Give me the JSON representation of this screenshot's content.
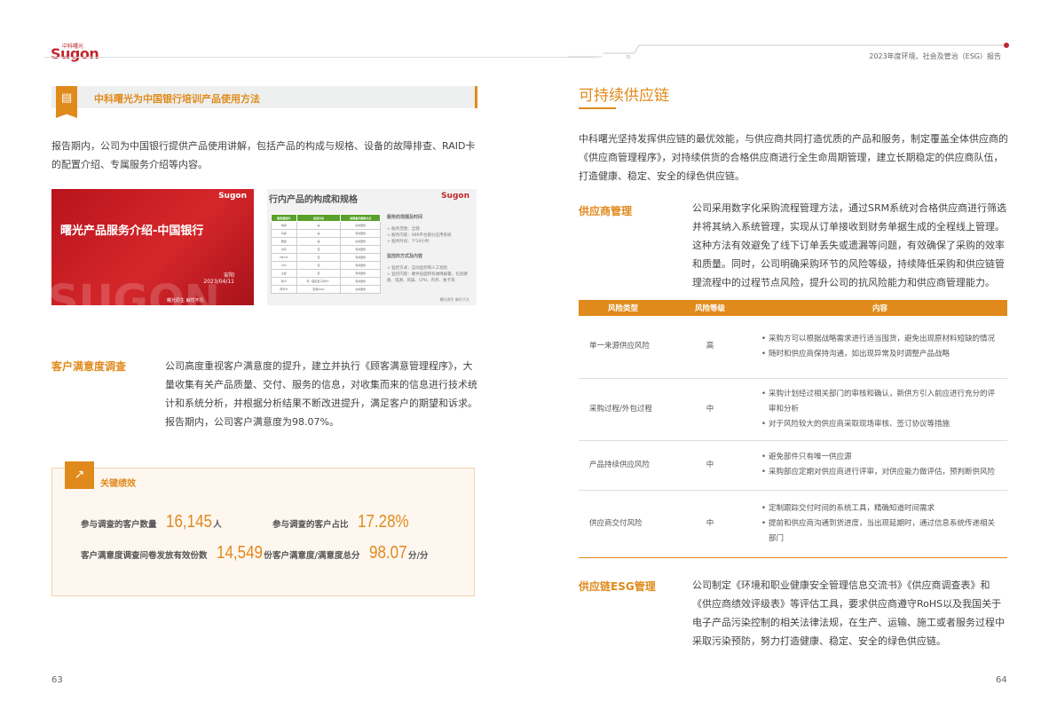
{
  "header": {
    "logo_cn": "中科曙光",
    "logo": "Sugon",
    "report_title": "2023年度环境、社会及管治（ESG）报告"
  },
  "left": {
    "banner_title": "中科曙光为中国银行培训产品使用方法",
    "intro": "报告期内，公司为中国银行提供产品使用讲解，包括产品的构成与规格、设备的故障排查、RAID卡的配置介绍、专属服务介绍等内容。",
    "slide1": {
      "logo": "Sugon",
      "title": "曙光产品服务介绍-中国银行",
      "presenter": "安阳",
      "date": "2023/04/11",
      "footer": "曙光原生 解忧不凡"
    },
    "slide2": {
      "logo": "Sugon",
      "title": "行内产品的构成和规格",
      "table_headers": [
        "服务器组件",
        "是否冗余",
        "故障备件替换方式"
      ],
      "table_rows": [
        [
          "电源",
          "是",
          "在线更换"
        ],
        [
          "风扇",
          "是",
          "离线更换"
        ],
        [
          "硬盘",
          "是",
          "在线更换"
        ],
        [
          "内存",
          "否",
          "离线更换"
        ],
        [
          "HBA卡",
          "否",
          "离线更换"
        ],
        [
          "CPU",
          "否",
          "离线更换"
        ],
        [
          "主板",
          "否",
          "离线更换"
        ],
        [
          "网卡",
          "有（需配置子网卡）",
          "离线更换"
        ],
        [
          "阵列卡",
          "配置RAID",
          "在线更换"
        ]
      ],
      "scope_title": "服务的范围及时间",
      "scope_items": [
        "服务范围：全辖",
        "服务内容：X86平台部分应用系统",
        "服务时间：7*24小时"
      ],
      "monitor_title": "监控的方式及内容",
      "monitor_items": [
        "监控方式：自动监控和人工巡检",
        "监控内容：硬件层面所有故障报警，包括硬盘、电源、风扇、CPU、内存、板卡等"
      ],
      "footer": "曙光原生 解忧不凡"
    },
    "satisfaction": {
      "heading": "客户满意度调查",
      "text": "公司高度重视客户满意度的提升，建立并执行《顾客满意管理程序》，大量收集有关产品质量、交付、服务的信息，对收集而来的信息进行技术统计和系统分析，并根据分析结果不断改进提升，满足客户的期望和诉求。报告期内，公司客户满意度为98.07%。"
    },
    "kpi": {
      "title": "关键绩效",
      "items": [
        {
          "label": "参与调查的客户数量",
          "value": "16,145",
          "unit": "人"
        },
        {
          "label": "参与调查的客户占比",
          "value": "17.28%",
          "unit": ""
        },
        {
          "label": "客户满意度调查问卷发放有效份数",
          "value": "14,549",
          "unit": "份"
        },
        {
          "label": "客户满意度/满意度总分",
          "value": "98.07",
          "unit": "分/分"
        }
      ]
    },
    "page_number": "63"
  },
  "right": {
    "title": "可持续供应链",
    "intro": "中科曙光坚持发挥供应链的最优效能，与供应商共同打造优质的产品和服务，制定覆盖全体供应商的《供应商管理程序》，对持续供货的合格供应商进行全生命周期管理，建立长期稳定的供应商队伍，打造健康、稳定、安全的绿色供应链。",
    "supplier_mgmt": {
      "heading": "供应商管理",
      "text": "公司采用数字化采购流程管理方法，通过SRM系统对合格供应商进行筛选并将其纳入系统管理，实现从订单接收到财务单据生成的全程线上管理。这种方法有效避免了线下订单丢失或遗漏等问题，有效确保了采购的效率和质量。同时，公司明确采购环节的风险等级，持续降低采购和供应链管理流程中的过程节点风险，提升公司的抗风险能力和供应商管理能力。"
    },
    "risk_table": {
      "headers": [
        "风险类型",
        "风险等级",
        "内容"
      ],
      "rows": [
        {
          "type": "单一来源供应风险",
          "level": "高",
          "items": [
            "采购方可以根据战略需求进行适当囤货，避免出现原材料短缺的情况",
            "随时和供应商保持沟通，如出现异常及时调整产品战略"
          ]
        },
        {
          "type": "采购过程/外包过程",
          "level": "中",
          "items": [
            "采购计划经过相关部门的审核和确认，新供方引入前应进行充分的评审和分析",
            "对于风险较大的供应商采取现场审核、签订协议等措施"
          ]
        },
        {
          "type": "产品持续供应风险",
          "level": "中",
          "items": [
            "避免部件只有唯一供应源",
            "采购部应定期对供应商进行评审，对供应能力做评估，预判断供风险"
          ]
        },
        {
          "type": "供应商交付风险",
          "level": "中",
          "items": [
            "定制跟踪交付时间的系统工具，精确知道时间需求",
            "提前和供应商沟通到货进度，当出现延期时，通过信息系统传递相关部门"
          ]
        }
      ]
    },
    "esg_mgmt": {
      "heading": "供应链ESG管理",
      "text": "公司制定《环境和职业健康安全管理信息交流书》《供应商调查表》和《供应商绩效评级表》等评估工具，要求供应商遵守RoHS以及我国关于电子产品污染控制的相关法律法规，在生产、运输、施工或者服务过程中采取污染预防，努力打造健康、稳定、安全的绿色供应链。"
    },
    "page_number": "64"
  },
  "colors": {
    "accent": "#e08a1c",
    "brand_red": "#c0272d"
  }
}
